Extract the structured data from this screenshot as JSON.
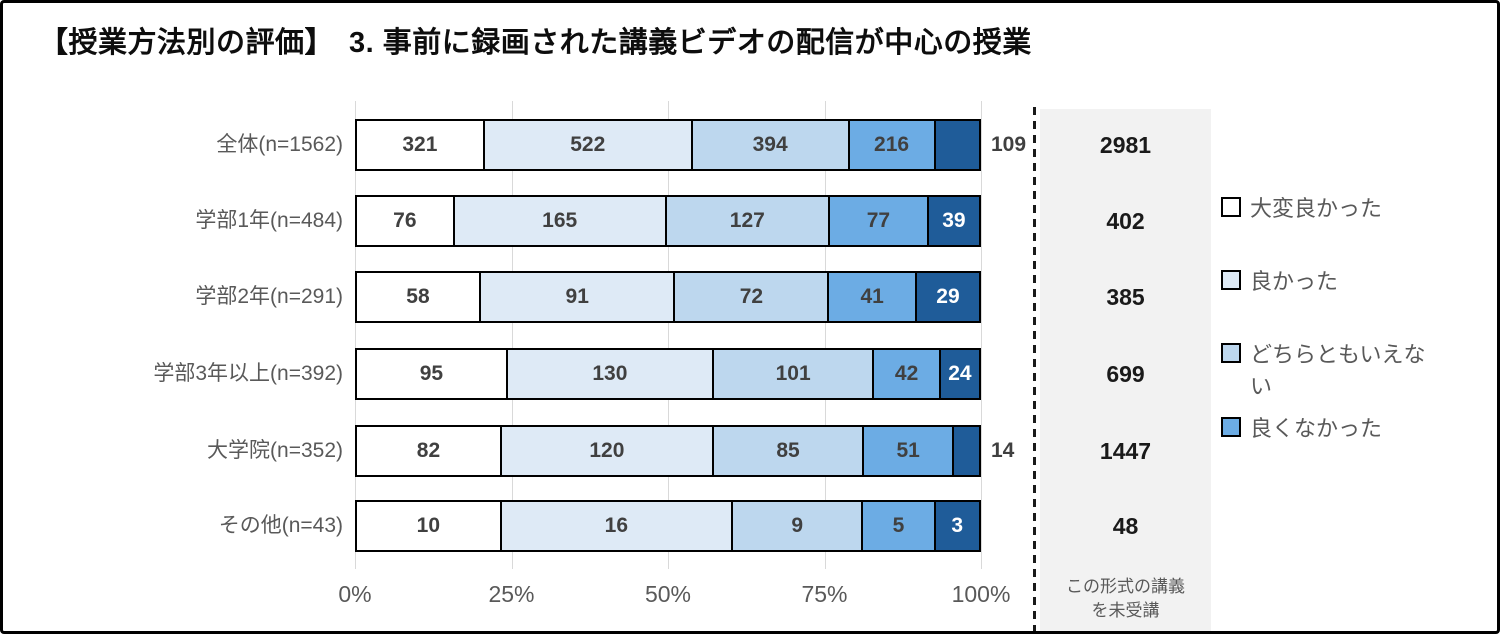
{
  "title": "【授業方法別の評価】　3. 事前に録画された講義ビデオの配信が中心の授業",
  "colors": {
    "frame_border": "#000000",
    "bar_border": "#000000",
    "grid": "#D9D9D9",
    "axis_text": "#595959",
    "row_label_text": "#595959",
    "value_label": "#404040",
    "value_label_on_dark": "#FFFFFF",
    "panel_bg": "#F2F2F2",
    "panel_value_text": "#1a1a1a",
    "legend_text": "#595959"
  },
  "chart_data": {
    "type": "bar",
    "stacked": true,
    "horizontal": true,
    "title": "【授業方法別の評価】　3. 事前に録画された講義ビデオの配信が中心の授業",
    "categories": [
      "全体(n=1562)",
      "学部1年(n=484)",
      "学部2年(n=291)",
      "学部3年以上(n=392)",
      "大学院(n=352)",
      "その他(n=43)"
    ],
    "category_totals": [
      1562,
      484,
      291,
      392,
      352,
      43
    ],
    "series": [
      {
        "name": "大変良かった",
        "color": "#FFFFFF",
        "values": [
          321,
          76,
          58,
          95,
          82,
          10
        ]
      },
      {
        "name": "良かった",
        "color": "#DEEAF6",
        "values": [
          522,
          165,
          91,
          130,
          120,
          16
        ]
      },
      {
        "name": "どちらともいえない",
        "color": "#BDD7EE",
        "values": [
          394,
          127,
          72,
          101,
          85,
          9
        ]
      },
      {
        "name": "良くなかった",
        "color": "#6CACE4",
        "values": [
          216,
          77,
          41,
          42,
          51,
          5
        ]
      },
      {
        "name": "",
        "color": "#1F5C99",
        "values": [
          109,
          39,
          29,
          24,
          14,
          3
        ],
        "legend_visible": false
      }
    ],
    "x_ticks": [
      "0%",
      "25%",
      "50%",
      "75%",
      "100%"
    ],
    "xlim": [
      0,
      100
    ],
    "grid": true,
    "legend_position": "right",
    "legend": [
      {
        "label": "大変良かった",
        "color": "#FFFFFF"
      },
      {
        "label": "良かった",
        "color": "#DEEAF6"
      },
      {
        "label": "どちらともいえない",
        "color": "#BDD7EE"
      },
      {
        "label": "良くなかった",
        "color": "#6CACE4"
      }
    ],
    "right_column": {
      "header_lines": [
        "この形式の講義",
        "を未受講"
      ],
      "values": [
        2981,
        402,
        385,
        699,
        1447,
        48
      ]
    },
    "last_label_outside": [
      true,
      false,
      false,
      false,
      true,
      false
    ]
  }
}
